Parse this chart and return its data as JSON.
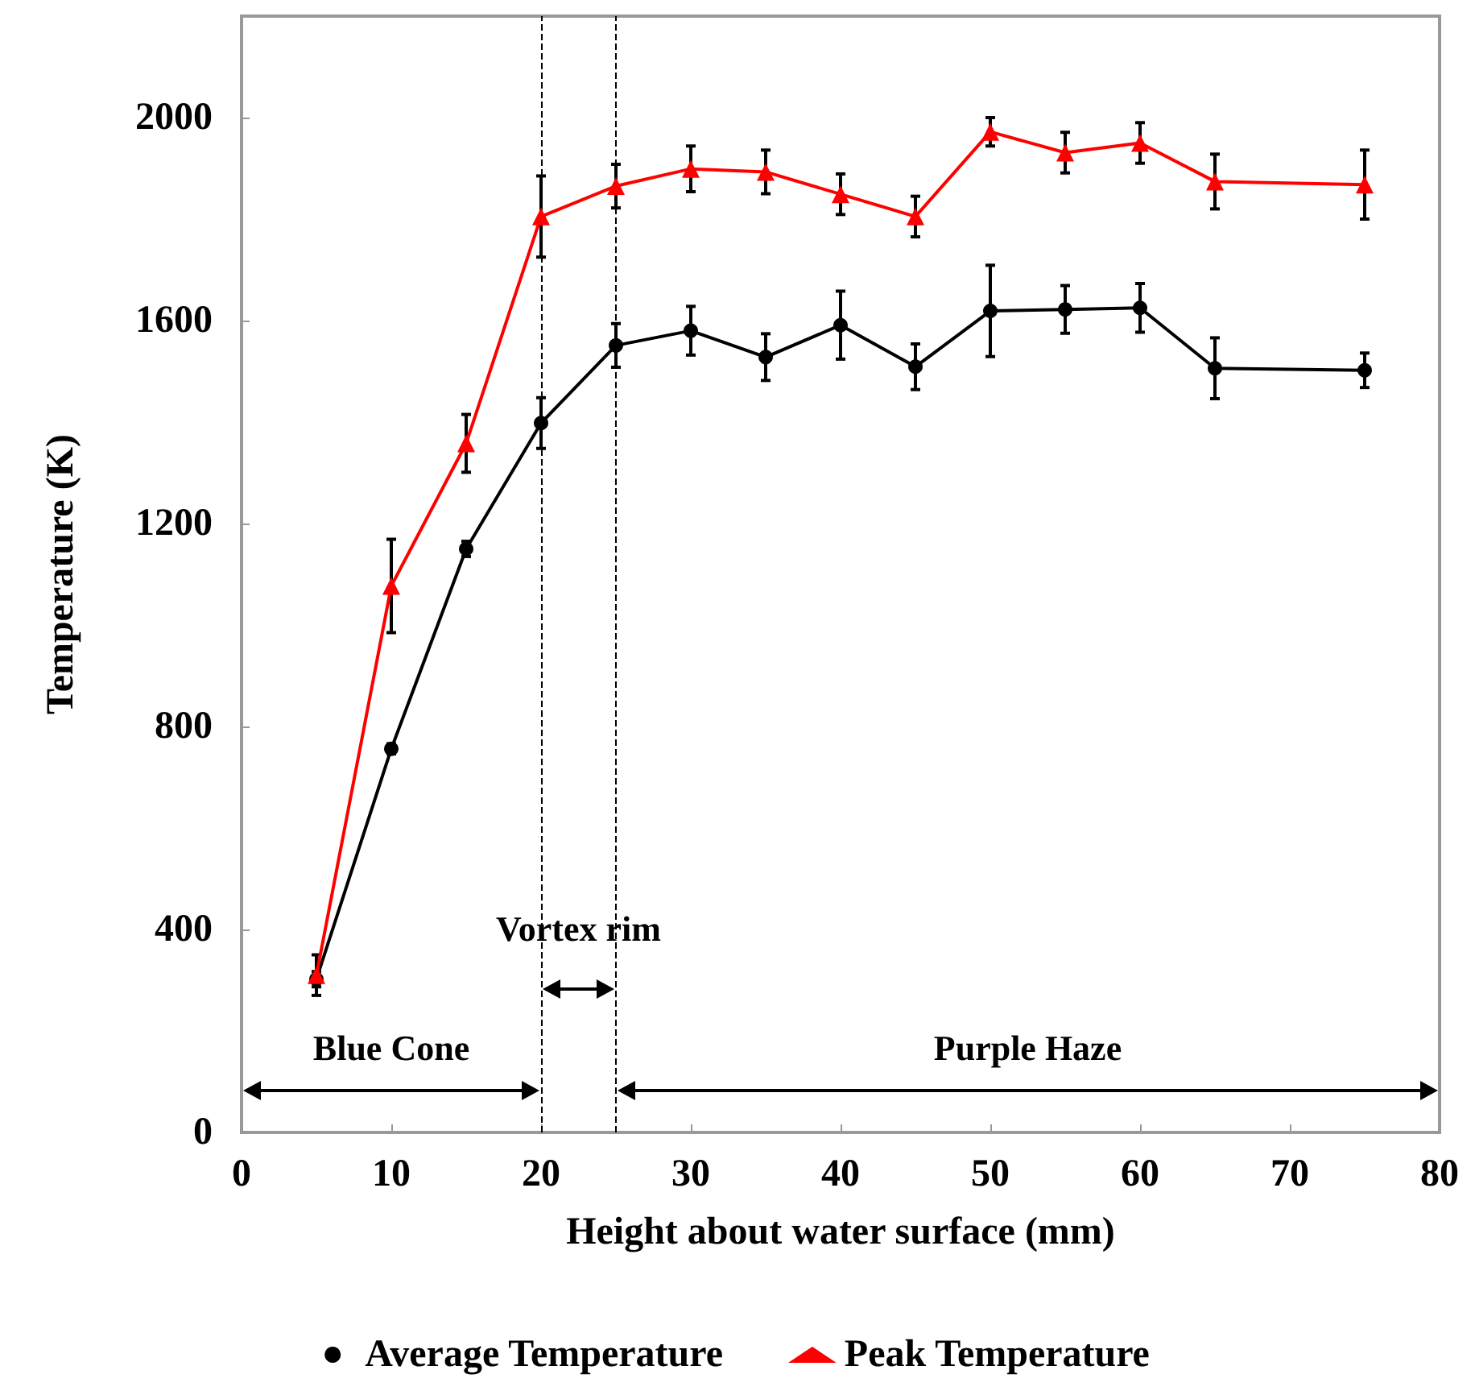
{
  "chart_data": {
    "type": "line",
    "xlabel": "Height about water surface (mm)",
    "ylabel": "Temperature (K)",
    "x": [
      5,
      10,
      15,
      20,
      25,
      30,
      35,
      40,
      45,
      50,
      55,
      60,
      65,
      75
    ],
    "series": [
      {
        "name": "Average Temperature",
        "color": "#000000",
        "marker": "circle",
        "values": [
          302,
          756,
          1150,
          1398,
          1551,
          1580,
          1528,
          1591,
          1509,
          1619,
          1622,
          1625,
          1506,
          1502
        ],
        "errors": [
          15,
          10,
          15,
          50,
          43,
          48,
          46,
          67,
          45,
          90,
          47,
          48,
          60,
          34
        ]
      },
      {
        "name": "Peak Temperature",
        "color": "#ff0000",
        "marker": "triangle",
        "values": [
          310,
          1077,
          1358,
          1805,
          1865,
          1899,
          1893,
          1849,
          1805,
          1972,
          1931,
          1950,
          1874,
          1868
        ],
        "errors": [
          40,
          92,
          57,
          80,
          43,
          45,
          43,
          40,
          40,
          28,
          40,
          40,
          54,
          68
        ]
      }
    ],
    "xlim": [
      0,
      80
    ],
    "xticks": [
      0,
      10,
      20,
      30,
      40,
      50,
      60,
      70,
      80
    ],
    "ylim": [
      0,
      2200
    ],
    "yticks": [
      0,
      400,
      800,
      1200,
      1600,
      2000
    ],
    "ref_lines": [
      {
        "axis": "x",
        "value": 20,
        "color": "#000000",
        "line_style": "dashed"
      },
      {
        "axis": "x",
        "value": 25,
        "color": "#000000",
        "line_style": "dashed"
      }
    ],
    "annotations": [
      "Blue Cone",
      "Vortex rim",
      "Purple Haze"
    ],
    "grid": false,
    "legend": "bottom",
    "line_style": "solid"
  }
}
